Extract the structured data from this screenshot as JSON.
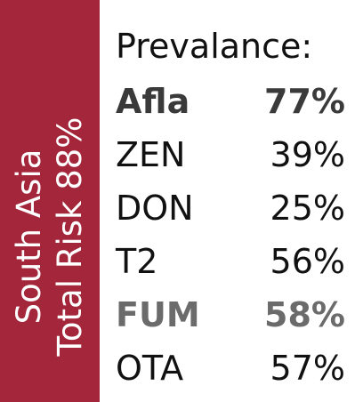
{
  "region": {
    "line1": "South Asia",
    "line2": "Total Risk 88%"
  },
  "heading": "Prevalance:",
  "rows": [
    {
      "label": "Afla",
      "value": "77%"
    },
    {
      "label": "ZEN",
      "value": "39%"
    },
    {
      "label": "DON",
      "value": "25%"
    },
    {
      "label": "T2",
      "value": "56%"
    },
    {
      "label": "FUM",
      "value": "58%"
    },
    {
      "label": "OTA",
      "value": "57%"
    }
  ],
  "colors": {
    "bar": "#a3263a",
    "text": "#111111",
    "emphasis_afla": "#3a3a3a",
    "emphasis_fum": "#6b6b6b"
  }
}
